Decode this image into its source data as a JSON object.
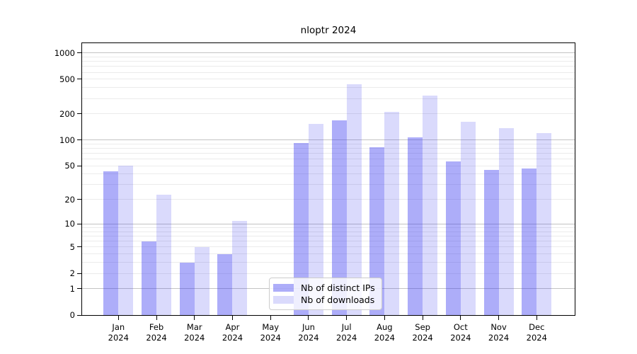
{
  "chart_data": {
    "type": "bar",
    "title": "nloptr 2024",
    "x_categories": [
      "Jan",
      "Feb",
      "Mar",
      "Apr",
      "May",
      "Jun",
      "Jul",
      "Aug",
      "Sep",
      "Oct",
      "Nov",
      "Dec"
    ],
    "x_year_label": "2024",
    "series": [
      {
        "name": "Nb of distinct IPs",
        "color": "rgba(60,60,240,0.42)",
        "values": [
          43,
          6,
          3,
          4,
          0,
          92,
          167,
          83,
          108,
          56,
          45,
          47
        ]
      },
      {
        "name": "Nb of downloads",
        "color": "rgba(60,60,240,0.19)",
        "values": [
          50,
          23,
          5,
          11,
          0,
          152,
          441,
          209,
          327,
          163,
          138,
          121
        ]
      }
    ],
    "y_ticks": [
      1000,
      500,
      200,
      100,
      50,
      20,
      10,
      5,
      2,
      1,
      0
    ],
    "y_scale": "log1p",
    "y_axis_range": [
      0,
      1295
    ],
    "major_gridlines": [
      1,
      10,
      100,
      1000
    ],
    "minor_gridlines": [
      2,
      3,
      4,
      5,
      6,
      7,
      8,
      9,
      20,
      30,
      40,
      50,
      60,
      70,
      80,
      90,
      200,
      300,
      400,
      500,
      600,
      700,
      800,
      900
    ],
    "grid": "on",
    "legend_position": "bottom-center"
  },
  "colors": {
    "background": "#ffffff",
    "spine": "#000000",
    "text": "#000000",
    "major_grid": "#c3c3c3",
    "minor_grid": "#ebebeb",
    "legend_border": "#cccccc",
    "legend_background": "rgba(255,255,255,0.8)"
  }
}
